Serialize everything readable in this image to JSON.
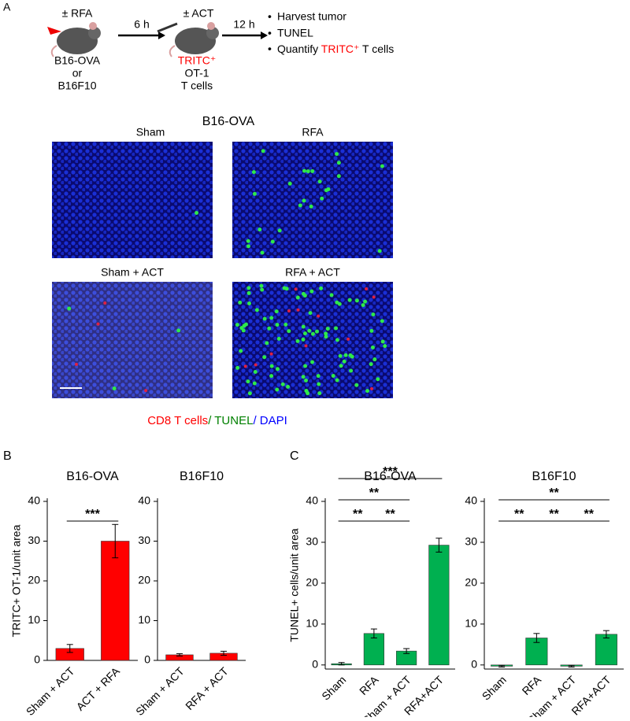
{
  "panel_a": {
    "letter": "A",
    "mouse1": [
      "± RFA",
      "B16-OVA",
      "or",
      "B16F10"
    ],
    "step1": "6 h",
    "mouse2_top": "± ACT",
    "mouse2": [
      "TRITC⁺",
      "OT-1",
      "T cells"
    ],
    "step2": "12 h",
    "bullets": [
      "Harvest tumor",
      "TUNEL"
    ],
    "bullet3": [
      "Quantify ",
      "TRITC⁺",
      " T cells"
    ],
    "images_title": "B16-OVA",
    "image_labels": [
      "Sham",
      "RFA",
      "Sham + ACT",
      "RFA + ACT"
    ],
    "stain_legend": [
      {
        "text": "CD8 T cells",
        "color": "#ff0000"
      },
      {
        "text": "/ TUNEL",
        "color": "#008000"
      },
      {
        "text": "/ DAPI",
        "color": "#0000ff"
      }
    ]
  },
  "chart_data": [
    {
      "type": "bar",
      "panel": "B",
      "title": "B16-OVA",
      "y_label": "TRITC+ OT-1/unit area",
      "categories": [
        "Sham + ACT",
        "ACT + RFA"
      ],
      "series": [
        {
          "color": "#ff0000",
          "values": [
            3,
            30
          ],
          "errors": [
            1,
            4.2
          ]
        }
      ],
      "ylim": [
        0,
        40
      ],
      "yticks": [
        0,
        10,
        20,
        30,
        40
      ],
      "significance": [
        {
          "label": "***",
          "between": [
            "Sham + ACT",
            "ACT + RFA"
          ]
        }
      ]
    },
    {
      "type": "bar",
      "title": "B16F10",
      "categories": [
        "Sham + ACT",
        "RFA + ACT"
      ],
      "series": [
        {
          "color": "#ff0000",
          "values": [
            1.4,
            1.8
          ],
          "errors": [
            0.3,
            0.5
          ]
        }
      ],
      "ylim": [
        0,
        40
      ],
      "yticks": [
        0,
        10,
        20,
        30,
        40
      ]
    },
    {
      "type": "bar",
      "panel": "C",
      "title": "B16-OVA",
      "y_label": "TUNEL+ cells/unit area",
      "categories": [
        "Sham",
        "RFA",
        "Sham + ACT",
        "RFA+ACT"
      ],
      "series": [
        {
          "color": "#00b050",
          "values": [
            0.3,
            7.7,
            3.4,
            29.3
          ],
          "errors": [
            0.3,
            1.1,
            0.6,
            1.7
          ]
        }
      ],
      "ylim": [
        -1,
        40
      ],
      "yticks": [
        0,
        10,
        20,
        30,
        40
      ],
      "significance": [
        {
          "label": "**",
          "between": [
            "Sham",
            "RFA"
          ]
        },
        {
          "label": "**",
          "between": [
            "RFA",
            "Sham + ACT"
          ]
        },
        {
          "label": "**",
          "between": [
            "Sham",
            "Sham + ACT"
          ]
        },
        {
          "label": "***",
          "between": [
            "Sham",
            "RFA+ACT"
          ]
        }
      ]
    },
    {
      "type": "bar",
      "title": "B16F10",
      "categories": [
        "Sham",
        "RFA",
        "Sham + ACT",
        "RFA+ACT"
      ],
      "series": [
        {
          "color": "#00b050",
          "values": [
            -0.3,
            6.6,
            -0.3,
            7.5
          ],
          "errors": [
            0.2,
            1.1,
            0.2,
            0.9
          ]
        }
      ],
      "ylim": [
        -1,
        40
      ],
      "yticks": [
        0,
        10,
        20,
        30,
        40
      ],
      "significance": [
        {
          "label": "**",
          "between": [
            "Sham",
            "RFA"
          ]
        },
        {
          "label": "**",
          "between": [
            "RFA",
            "Sham + ACT"
          ]
        },
        {
          "label": "**",
          "between": [
            "Sham + ACT",
            "RFA+ACT"
          ]
        },
        {
          "label": "**",
          "between": [
            "Sham",
            "RFA+ACT"
          ]
        }
      ]
    }
  ]
}
